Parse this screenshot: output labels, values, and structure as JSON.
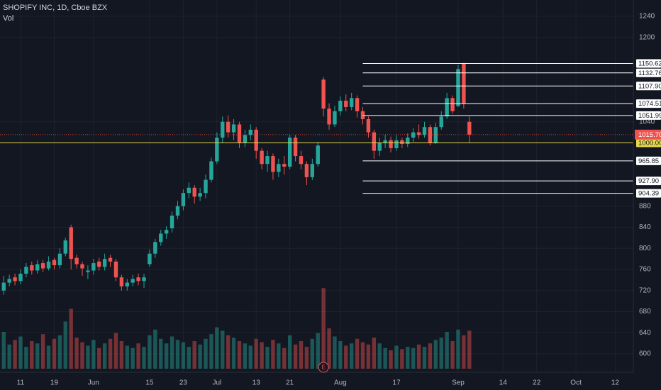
{
  "chart_data": {
    "type": "candlestick",
    "title": "SHOPIFY INC, 1D, Cboe BZX",
    "volume_label": "Vol",
    "earnings_marker": "E",
    "categories": [
      null,
      null,
      null,
      null,
      null,
      null,
      null,
      null,
      null,
      null,
      null,
      null,
      null,
      null,
      null,
      null,
      null,
      null,
      null,
      null,
      null,
      null,
      null,
      null,
      null,
      null,
      null,
      null,
      null,
      null,
      null,
      null,
      null,
      null,
      null,
      null,
      null,
      null,
      null,
      null,
      null,
      null,
      null,
      null,
      null,
      null,
      null,
      null,
      null,
      null,
      null,
      null,
      null,
      null,
      null,
      null,
      null,
      null,
      null,
      null,
      null,
      null,
      null,
      null,
      null,
      null,
      null,
      null,
      null,
      null,
      null,
      null,
      null,
      null,
      null,
      null,
      null,
      null,
      null,
      null,
      null,
      null,
      null,
      null
    ],
    "open": [
      720,
      735,
      745,
      738,
      752,
      768,
      758,
      772,
      762,
      778,
      768,
      790,
      840,
      782,
      770,
      755,
      758,
      775,
      765,
      782,
      775,
      745,
      728,
      735,
      745,
      738,
      770,
      790,
      812,
      828,
      838,
      862,
      880,
      905,
      915,
      898,
      905,
      930,
      965,
      1010,
      1040,
      1020,
      1035,
      1000,
      1015,
      1025,
      985,
      960,
      975,
      945,
      960,
      955,
      1010,
      975,
      960,
      935,
      960,
      1120,
      1065,
      1035,
      1060,
      1080,
      1068,
      1085,
      1060,
      1045,
      1020,
      985,
      1000,
      1005,
      990,
      1005,
      998,
      1010,
      1020,
      1015,
      1030,
      1000,
      1030,
      1050,
      1085,
      1070,
      1150,
      1040
    ],
    "high": [
      748,
      750,
      752,
      760,
      772,
      775,
      778,
      778,
      785,
      782,
      800,
      820,
      845,
      788,
      775,
      768,
      780,
      782,
      790,
      788,
      780,
      750,
      742,
      750,
      752,
      752,
      798,
      818,
      835,
      842,
      870,
      890,
      912,
      925,
      920,
      915,
      940,
      972,
      1020,
      1050,
      1052,
      1045,
      1040,
      1025,
      1035,
      1030,
      990,
      985,
      980,
      970,
      975,
      1015,
      1015,
      985,
      965,
      970,
      1002,
      1125,
      1075,
      1070,
      1088,
      1092,
      1095,
      1090,
      1068,
      1050,
      1025,
      1010,
      1015,
      1012,
      1015,
      1010,
      1018,
      1028,
      1035,
      1040,
      1035,
      1038,
      1060,
      1095,
      1090,
      1148,
      1152,
      1050
    ],
    "low": [
      712,
      728,
      730,
      732,
      745,
      750,
      752,
      755,
      758,
      760,
      762,
      785,
      760,
      762,
      748,
      742,
      750,
      758,
      758,
      765,
      738,
      720,
      720,
      728,
      730,
      725,
      765,
      782,
      805,
      818,
      830,
      855,
      872,
      895,
      885,
      890,
      895,
      925,
      960,
      1000,
      1010,
      1005,
      990,
      992,
      1005,
      970,
      950,
      945,
      930,
      935,
      940,
      950,
      965,
      950,
      920,
      930,
      955,
      1050,
      1025,
      1030,
      1052,
      1060,
      1062,
      1048,
      1035,
      1010,
      970,
      975,
      990,
      982,
      985,
      990,
      992,
      1002,
      1008,
      1010,
      995,
      998,
      1025,
      1045,
      1055,
      1068,
      1065,
      1000
    ],
    "close": [
      735,
      742,
      738,
      752,
      765,
      758,
      770,
      762,
      775,
      768,
      790,
      815,
      780,
      770,
      762,
      758,
      772,
      765,
      780,
      775,
      745,
      728,
      735,
      742,
      738,
      745,
      790,
      812,
      828,
      835,
      862,
      880,
      905,
      915,
      898,
      905,
      930,
      965,
      1010,
      1040,
      1020,
      1035,
      1000,
      1015,
      1025,
      985,
      960,
      975,
      945,
      960,
      955,
      1010,
      975,
      960,
      935,
      960,
      995,
      1065,
      1035,
      1060,
      1080,
      1068,
      1085,
      1060,
      1045,
      1020,
      985,
      1000,
      1005,
      990,
      1005,
      998,
      1010,
      1020,
      1015,
      1030,
      1000,
      1030,
      1050,
      1085,
      1060,
      1140,
      1075,
      1015.7
    ],
    "volume": [
      3.2,
      2.1,
      2.5,
      2.8,
      1.9,
      2.4,
      2.2,
      3.0,
      2.0,
      2.6,
      2.9,
      4.1,
      5.2,
      2.7,
      2.3,
      2.0,
      2.5,
      1.8,
      2.2,
      2.6,
      3.1,
      2.4,
      2.0,
      1.8,
      2.2,
      1.9,
      2.9,
      3.4,
      2.6,
      2.2,
      2.8,
      2.5,
      2.3,
      1.9,
      2.4,
      2.1,
      2.6,
      3.0,
      3.6,
      3.3,
      2.9,
      2.7,
      2.4,
      2.2,
      2.0,
      2.6,
      2.3,
      1.9,
      2.5,
      2.2,
      1.8,
      2.9,
      2.1,
      2.4,
      1.9,
      2.6,
      3.1,
      7.0,
      3.5,
      2.8,
      2.4,
      2.0,
      2.2,
      2.6,
      2.3,
      2.1,
      2.7,
      2.2,
      1.8,
      1.6,
      2.0,
      1.7,
      1.9,
      1.8,
      2.1,
      1.9,
      2.2,
      2.5,
      2.7,
      3.2,
      2.4,
      3.4,
      2.9,
      3.3
    ],
    "up_color": "#26a69a",
    "down_color": "#ef5350",
    "ylim": [
      600,
      1240
    ],
    "yticks": [
      600,
      640,
      680,
      720,
      760,
      800,
      840,
      880,
      1040,
      1200,
      1240
    ],
    "vol_ylim": [
      0,
      8
    ],
    "xlim": [
      -0.666,
      112.23
    ],
    "xticks": [
      {
        "value": 3,
        "label": "11"
      },
      {
        "value": 9,
        "label": "19"
      },
      {
        "value": 16,
        "label": "Jun"
      },
      {
        "value": 26,
        "label": "15"
      },
      {
        "value": 32,
        "label": "23"
      },
      {
        "value": 38,
        "label": "Jul"
      },
      {
        "value": 45,
        "label": "13"
      },
      {
        "value": 51,
        "label": "21"
      },
      {
        "value": 60,
        "label": "Aug"
      },
      {
        "value": 70,
        "label": "17"
      },
      {
        "value": 81,
        "label": "Sep"
      },
      {
        "value": 89,
        "label": "14"
      },
      {
        "value": 95,
        "label": "22"
      },
      {
        "value": 102,
        "label": "Oct"
      },
      {
        "value": 109,
        "label": "12"
      }
    ],
    "earnings_index": 57,
    "levels": [
      1150.62,
      1132.76,
      {
        "value": 1107.9,
        "label": "1107.90"
      },
      1074.51,
      1051.99,
      965.85,
      {
        "value": 927.9,
        "label": "927.90"
      },
      904.39
    ],
    "levels_start_index": 64,
    "level_color": "#ffffff",
    "alert_level": {
      "value": 1000,
      "label": "1000.00"
    },
    "alert_color": "#e8d84a",
    "last_price": {
      "value": 1015.7,
      "label": "1015.70"
    },
    "grid": true
  }
}
